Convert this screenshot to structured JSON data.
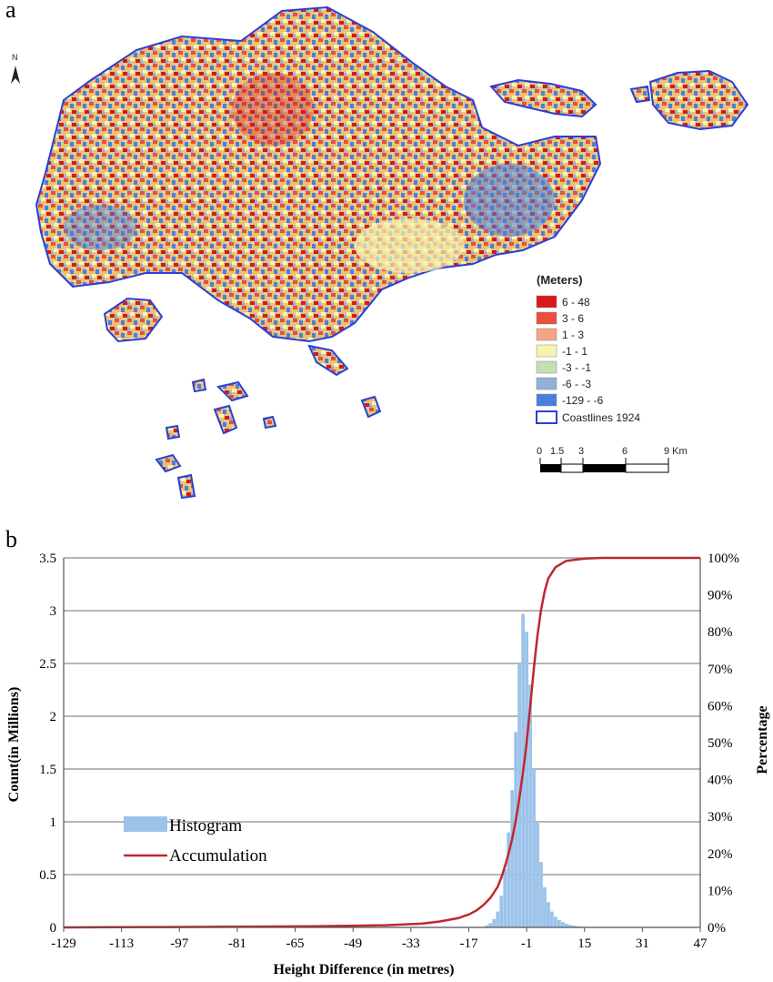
{
  "panel_a": {
    "label": "a",
    "north_symbol": "N",
    "legend": {
      "title": "(Meters)",
      "classes": [
        {
          "label": "6 - 48",
          "color": "#d7191c"
        },
        {
          "label": "3 - 6",
          "color": "#e8503a"
        },
        {
          "label": "1 - 3",
          "color": "#f4a582"
        },
        {
          "label": "-1 - 1",
          "color": "#f7f4b0"
        },
        {
          "label": "-3 - -1",
          "color": "#c3e0b4"
        },
        {
          "label": "-6 - -3",
          "color": "#8fb2d6"
        },
        {
          "label": "-129 - -6",
          "color": "#4a7fe0"
        }
      ],
      "coastline_label": "Coastlines 1924",
      "coastline_color": "#2a3fd8"
    },
    "scale_bar": {
      "labels": [
        "0",
        "1.5",
        "3",
        "6",
        "9 Km"
      ]
    }
  },
  "panel_b": {
    "label": "b"
  },
  "chart_data": {
    "type": "bar",
    "xlabel": "Height Difference (in metres)",
    "ylabel": "Count(in Millions)",
    "y2label": "Percentage",
    "xlim": [
      -129,
      47
    ],
    "ylim": [
      0,
      3.5
    ],
    "y2lim": [
      0,
      100
    ],
    "x_ticks": [
      "-129",
      "-113",
      "-97",
      "-81",
      "-65",
      "-49",
      "-33",
      "-17",
      "-1",
      "15",
      "31",
      "47"
    ],
    "y_ticks": [
      "0",
      "0.5",
      "1",
      "1.5",
      "2",
      "2.5",
      "3",
      "3.5"
    ],
    "y2_ticks": [
      "0%",
      "10%",
      "20%",
      "30%",
      "40%",
      "50%",
      "60%",
      "70%",
      "80%",
      "90%",
      "100%"
    ],
    "grid": true,
    "legend_position": "middle-left",
    "series": [
      {
        "name": "Histogram",
        "type": "bar",
        "color": "#9dc3ea",
        "x": [
          -12,
          -11,
          -10,
          -9,
          -8,
          -7,
          -6,
          -5,
          -4,
          -3,
          -2,
          -1,
          0,
          1,
          2,
          3,
          4,
          5,
          6,
          7,
          8,
          9,
          10,
          11,
          12,
          13,
          14,
          15
        ],
        "values": [
          0.02,
          0.04,
          0.08,
          0.15,
          0.3,
          0.55,
          0.9,
          1.3,
          1.85,
          2.5,
          2.97,
          2.8,
          2.3,
          1.5,
          1.0,
          0.62,
          0.38,
          0.24,
          0.15,
          0.1,
          0.07,
          0.05,
          0.035,
          0.025,
          0.018,
          0.012,
          0.008,
          0.005
        ]
      },
      {
        "name": "Accumulation",
        "type": "line",
        "axis": "y2",
        "color": "#c0272d",
        "x": [
          -129,
          -100,
          -80,
          -60,
          -40,
          -30,
          -25,
          -20,
          -17,
          -15,
          -13,
          -11,
          -9,
          -8,
          -7,
          -6,
          -5,
          -4,
          -3,
          -2,
          -1,
          0,
          1,
          2,
          3,
          4,
          5,
          7,
          10,
          15,
          20,
          47
        ],
        "values": [
          0,
          0.1,
          0.2,
          0.3,
          0.6,
          1.0,
          1.6,
          2.5,
          3.5,
          4.5,
          6,
          8,
          11,
          13.5,
          16.5,
          20,
          24,
          29,
          35,
          42,
          50,
          60,
          70,
          79,
          86,
          91,
          94.5,
          97.5,
          99.2,
          99.8,
          100,
          100
        ]
      }
    ]
  }
}
